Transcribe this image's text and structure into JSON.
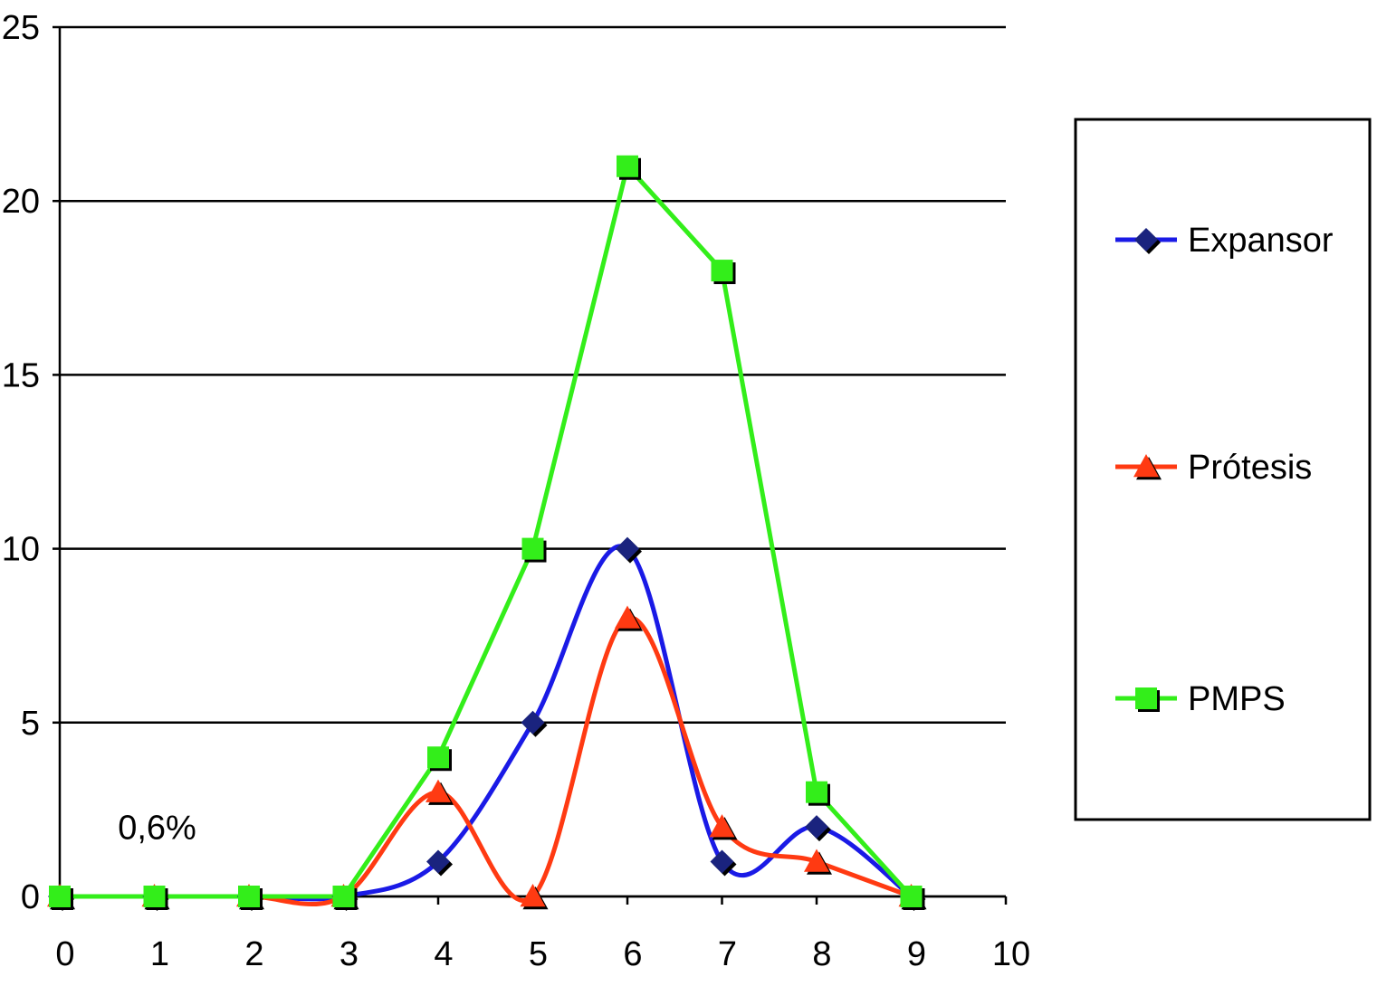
{
  "chart_data": {
    "type": "line",
    "x": [
      0,
      1,
      2,
      3,
      4,
      5,
      6,
      7,
      8,
      9
    ],
    "xlim": [
      0,
      10
    ],
    "ylim": [
      0,
      25
    ],
    "xticks": [
      "0",
      "1",
      "2",
      "3",
      "4",
      "5",
      "6",
      "7",
      "8",
      "9",
      "10"
    ],
    "yticks": [
      "0",
      "5",
      "10",
      "15",
      "20",
      "25"
    ],
    "grid": "horizontal",
    "legend_position": "right",
    "series": [
      {
        "name": "Expansor",
        "values": [
          0,
          0,
          0,
          0,
          1,
          5,
          10,
          1,
          2,
          0
        ],
        "color": "#1a1ae6",
        "marker": "diamond",
        "marker_color": "#1a237e",
        "smooth": true
      },
      {
        "name": "Prótesis",
        "values": [
          0,
          0,
          0,
          0,
          3,
          0,
          8,
          2,
          1,
          0
        ],
        "color": "#ff3a12",
        "marker": "triangle",
        "marker_color": "#ff3a12",
        "smooth": true
      },
      {
        "name": "PMPS",
        "values": [
          0,
          0,
          0,
          0,
          4,
          10,
          21,
          18,
          3,
          0
        ],
        "color": "#33ee1a",
        "marker": "square",
        "marker_color": "#33ee1a",
        "smooth": false
      }
    ],
    "annotations": [
      {
        "text": "0,6%",
        "x": 1,
        "y": 1.6
      }
    ]
  }
}
